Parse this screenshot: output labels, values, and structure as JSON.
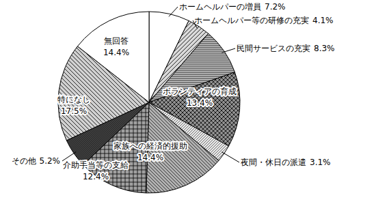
{
  "chart_data": {
    "type": "pie",
    "categories": [
      "ホームヘルパーの増員",
      "ホームヘルパー等の研修の充実",
      "民間サービスの充実",
      "ボランティアの育成",
      "夜間・休日の派遣",
      "家族への経済的援助",
      "介助手当等の支給",
      "その他",
      "特になし",
      "無回答"
    ],
    "values": [
      7.2,
      4.1,
      8.3,
      13.4,
      3.1,
      14.4,
      12.4,
      5.2,
      17.5,
      14.4
    ],
    "value_labels": [
      "7.2%",
      "4.1%",
      "8.3%",
      "13.4%",
      "3.1%",
      "14.4%",
      "12.4%",
      "5.2%",
      "17.5%",
      "14.4%"
    ],
    "colors": [
      "#ffffff",
      "#d8d8d8",
      "#c8c8c8",
      "#909090",
      "#e8e8e8",
      "#b0b0b0",
      "#a0a0a0",
      "#404040",
      "#d0d0d0",
      "#ffffff"
    ]
  }
}
